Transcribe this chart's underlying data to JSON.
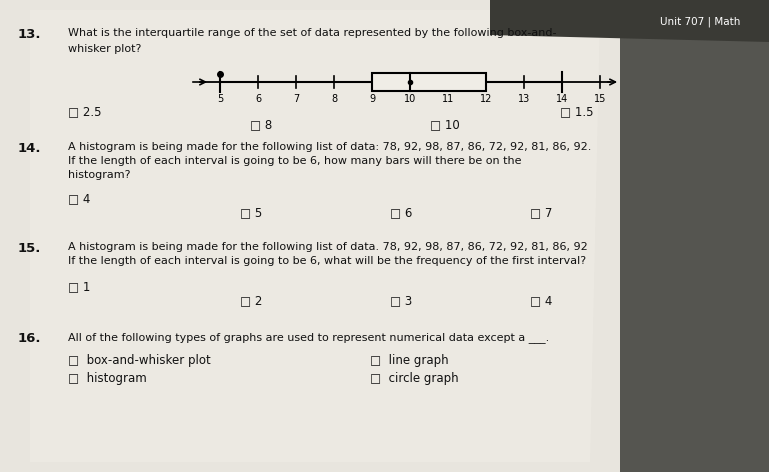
{
  "header_label": "Unit 707 | Math",
  "boxplot": {
    "min_val": 5,
    "q1": 9,
    "median": 10,
    "q3": 12,
    "max_val": 14,
    "axis_ticks": [
      5,
      6,
      7,
      8,
      9,
      10,
      11,
      12,
      13,
      14,
      15
    ]
  },
  "q13_num": "13.",
  "q13_line1": "What is the interquartile range of the set of data represented by the following box-and-",
  "q13_line2": "whisker plot?",
  "q13_choices": [
    {
      "label": "□ 2.5",
      "col": 0,
      "row": 0
    },
    {
      "label": "□ 8",
      "col": 1,
      "row": 1
    },
    {
      "label": "□ 10",
      "col": 2,
      "row": 1
    },
    {
      "label": "□ 1.5",
      "col": 3,
      "row": 1
    }
  ],
  "q14_num": "14.",
  "q14_line1": "A histogram is being made for the following list of data: 78, 92, 98, 87, 86, 72, 92, 81, 86, 92.",
  "q14_line2": "If the length of each interval is going to be 6, how many bars will there be on the",
  "q14_line3": "histogram?",
  "q14_choices": [
    {
      "label": "□ 4",
      "col": 0
    },
    {
      "label": "□ 5",
      "col": 1
    },
    {
      "label": "□ 6",
      "col": 2
    },
    {
      "label": "□ 7",
      "col": 3
    }
  ],
  "q15_num": "15.",
  "q15_line1": "A histogram is being made for the following list of data. 78, 92, 98, 87, 86, 72, 92, 81, 86, 92",
  "q15_line2": "If the length of each interval is going to be 6, what will be the frequency of the first interval?",
  "q15_choices": [
    {
      "label": "□ 1",
      "col": 0
    },
    {
      "label": "□ 2",
      "col": 1
    },
    {
      "label": "□ 3",
      "col": 2
    },
    {
      "label": "□ 4",
      "col": 3
    }
  ],
  "q16_num": "16.",
  "q16_line1": "All of the following types of graphs are used to represent numerical data except a ___.",
  "q16_choices": [
    {
      "label": "□  box-and-whisker plot",
      "col": 0,
      "row": 0
    },
    {
      "label": "□  line graph",
      "col": 1,
      "row": 0
    },
    {
      "label": "□  histogram",
      "col": 0,
      "row": 1
    },
    {
      "label": "□  circle graph",
      "col": 1,
      "row": 1
    }
  ],
  "paper_bg": "#d8d4cc",
  "paper_light": "#edeae3",
  "dark_right": "#4a4a4a",
  "text_color": "#111111",
  "font_size_body": 8.0,
  "font_size_num": 9.5
}
